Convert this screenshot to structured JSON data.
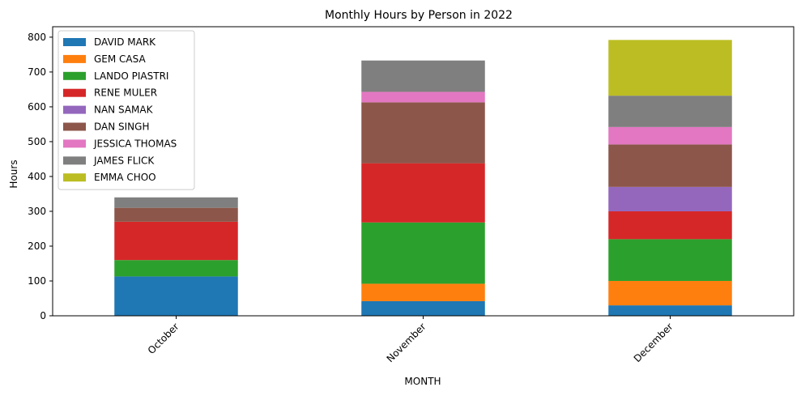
{
  "chart_data": {
    "type": "bar",
    "stacked": true,
    "title": "Monthly Hours by Person in 2022",
    "xlabel": "MONTH",
    "ylabel": "Hours",
    "categories": [
      "October",
      "November",
      "December"
    ],
    "ylim": [
      0,
      830
    ],
    "yticks": [
      0,
      100,
      200,
      300,
      400,
      500,
      600,
      700,
      800
    ],
    "grid": false,
    "legend_position": "top-left",
    "series": [
      {
        "name": "DAVID MARK",
        "color": "#1f77b4",
        "values": [
          113,
          42,
          30
        ]
      },
      {
        "name": "GEM CASA",
        "color": "#ff7f0e",
        "values": [
          0,
          50,
          70
        ]
      },
      {
        "name": "LANDO PIASTRI",
        "color": "#2ca02c",
        "values": [
          47,
          176,
          120
        ]
      },
      {
        "name": "RENE MULER",
        "color": "#d62728",
        "values": [
          110,
          170,
          80
        ]
      },
      {
        "name": "NAN SAMAK",
        "color": "#9467bd",
        "values": [
          0,
          0,
          70
        ]
      },
      {
        "name": "DAN SINGH",
        "color": "#8c564b",
        "values": [
          40,
          175,
          122
        ]
      },
      {
        "name": "JESSICA THOMAS",
        "color": "#e377c2",
        "values": [
          0,
          30,
          50
        ]
      },
      {
        "name": "JAMES FLICK",
        "color": "#7f7f7f",
        "values": [
          30,
          90,
          90
        ]
      },
      {
        "name": "EMMA CHOO",
        "color": "#bcbd22",
        "values": [
          0,
          0,
          160
        ]
      }
    ]
  }
}
